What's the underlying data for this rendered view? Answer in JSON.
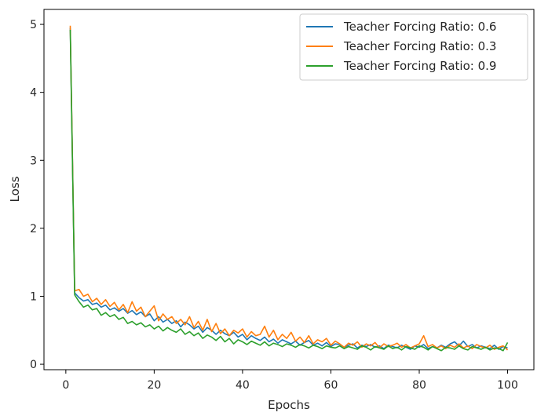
{
  "chart_data": {
    "type": "line",
    "xlabel": "Epochs",
    "ylabel": "Loss",
    "xlim": [
      -4.95,
      105.95
    ],
    "ylim": [
      -0.08,
      5.22
    ],
    "xticks": [
      0,
      20,
      40,
      60,
      80,
      100
    ],
    "yticks": [
      0,
      1,
      2,
      3,
      4,
      5
    ],
    "grid": false,
    "legend_position": "top-right",
    "series": [
      {
        "name": "Teacher Forcing Ratio: 0.6",
        "color": "#1f77b4",
        "x": [
          1,
          2,
          3,
          4,
          5,
          6,
          7,
          8,
          9,
          10,
          11,
          12,
          13,
          14,
          15,
          16,
          17,
          18,
          19,
          20,
          21,
          22,
          23,
          24,
          25,
          26,
          27,
          28,
          29,
          30,
          31,
          32,
          33,
          34,
          35,
          36,
          37,
          38,
          39,
          40,
          41,
          42,
          43,
          44,
          45,
          46,
          47,
          48,
          49,
          50,
          51,
          52,
          53,
          54,
          55,
          56,
          57,
          58,
          59,
          60,
          61,
          62,
          63,
          64,
          65,
          66,
          67,
          68,
          69,
          70,
          71,
          72,
          73,
          74,
          75,
          76,
          77,
          78,
          79,
          80,
          81,
          82,
          83,
          84,
          85,
          86,
          87,
          88,
          89,
          90,
          91,
          92,
          93,
          94,
          95,
          96,
          97,
          98,
          99,
          100
        ],
        "y": [
          4.95,
          1.05,
          0.98,
          0.93,
          0.95,
          0.88,
          0.9,
          0.84,
          0.87,
          0.8,
          0.83,
          0.78,
          0.82,
          0.75,
          0.79,
          0.73,
          0.77,
          0.7,
          0.74,
          0.64,
          0.7,
          0.62,
          0.66,
          0.6,
          0.64,
          0.55,
          0.62,
          0.58,
          0.52,
          0.56,
          0.47,
          0.54,
          0.5,
          0.44,
          0.5,
          0.45,
          0.42,
          0.47,
          0.4,
          0.44,
          0.36,
          0.42,
          0.38,
          0.35,
          0.4,
          0.33,
          0.37,
          0.31,
          0.36,
          0.33,
          0.3,
          0.34,
          0.28,
          0.32,
          0.35,
          0.28,
          0.31,
          0.27,
          0.32,
          0.26,
          0.3,
          0.29,
          0.25,
          0.28,
          0.3,
          0.24,
          0.28,
          0.26,
          0.29,
          0.25,
          0.27,
          0.23,
          0.28,
          0.26,
          0.24,
          0.28,
          0.25,
          0.22,
          0.27,
          0.25,
          0.29,
          0.23,
          0.26,
          0.24,
          0.28,
          0.25,
          0.3,
          0.33,
          0.27,
          0.34,
          0.26,
          0.29,
          0.24,
          0.27,
          0.25,
          0.23,
          0.28,
          0.22,
          0.26,
          0.24
        ]
      },
      {
        "name": "Teacher Forcing Ratio: 0.3",
        "color": "#ff7f0e",
        "x": [
          1,
          2,
          3,
          4,
          5,
          6,
          7,
          8,
          9,
          10,
          11,
          12,
          13,
          14,
          15,
          16,
          17,
          18,
          19,
          20,
          21,
          22,
          23,
          24,
          25,
          26,
          27,
          28,
          29,
          30,
          31,
          32,
          33,
          34,
          35,
          36,
          37,
          38,
          39,
          40,
          41,
          42,
          43,
          44,
          45,
          46,
          47,
          48,
          49,
          50,
          51,
          52,
          53,
          54,
          55,
          56,
          57,
          58,
          59,
          60,
          61,
          62,
          63,
          64,
          65,
          66,
          67,
          68,
          69,
          70,
          71,
          72,
          73,
          74,
          75,
          76,
          77,
          78,
          79,
          80,
          81,
          82,
          83,
          84,
          85,
          86,
          87,
          88,
          89,
          90,
          91,
          92,
          93,
          94,
          95,
          96,
          97,
          98,
          99,
          100
        ],
        "y": [
          4.98,
          1.08,
          1.1,
          1.0,
          1.03,
          0.92,
          0.97,
          0.88,
          0.95,
          0.85,
          0.91,
          0.8,
          0.88,
          0.76,
          0.92,
          0.78,
          0.84,
          0.7,
          0.78,
          0.86,
          0.64,
          0.74,
          0.66,
          0.7,
          0.6,
          0.66,
          0.58,
          0.7,
          0.54,
          0.63,
          0.5,
          0.66,
          0.48,
          0.6,
          0.45,
          0.52,
          0.42,
          0.5,
          0.46,
          0.52,
          0.4,
          0.48,
          0.42,
          0.44,
          0.56,
          0.4,
          0.5,
          0.36,
          0.44,
          0.38,
          0.47,
          0.34,
          0.4,
          0.32,
          0.42,
          0.3,
          0.36,
          0.33,
          0.38,
          0.28,
          0.34,
          0.3,
          0.25,
          0.31,
          0.28,
          0.33,
          0.25,
          0.3,
          0.27,
          0.32,
          0.24,
          0.3,
          0.26,
          0.28,
          0.31,
          0.25,
          0.29,
          0.24,
          0.27,
          0.3,
          0.42,
          0.26,
          0.29,
          0.24,
          0.27,
          0.23,
          0.28,
          0.25,
          0.3,
          0.24,
          0.27,
          0.23,
          0.29,
          0.26,
          0.24,
          0.28,
          0.22,
          0.25,
          0.27,
          0.21
        ]
      },
      {
        "name": "Teacher Forcing Ratio: 0.9",
        "color": "#2ca02c",
        "x": [
          1,
          2,
          3,
          4,
          5,
          6,
          7,
          8,
          9,
          10,
          11,
          12,
          13,
          14,
          15,
          16,
          17,
          18,
          19,
          20,
          21,
          22,
          23,
          24,
          25,
          26,
          27,
          28,
          29,
          30,
          31,
          32,
          33,
          34,
          35,
          36,
          37,
          38,
          39,
          40,
          41,
          42,
          43,
          44,
          45,
          46,
          47,
          48,
          49,
          50,
          51,
          52,
          53,
          54,
          55,
          56,
          57,
          58,
          59,
          60,
          61,
          62,
          63,
          64,
          65,
          66,
          67,
          68,
          69,
          70,
          71,
          72,
          73,
          74,
          75,
          76,
          77,
          78,
          79,
          80,
          81,
          82,
          83,
          84,
          85,
          86,
          87,
          88,
          89,
          90,
          91,
          92,
          93,
          94,
          95,
          96,
          97,
          98,
          99,
          100
        ],
        "y": [
          4.92,
          1.02,
          0.92,
          0.84,
          0.87,
          0.8,
          0.82,
          0.72,
          0.76,
          0.7,
          0.73,
          0.66,
          0.69,
          0.6,
          0.63,
          0.58,
          0.61,
          0.55,
          0.58,
          0.52,
          0.56,
          0.49,
          0.54,
          0.5,
          0.47,
          0.52,
          0.44,
          0.48,
          0.42,
          0.46,
          0.38,
          0.43,
          0.4,
          0.35,
          0.41,
          0.33,
          0.38,
          0.3,
          0.36,
          0.33,
          0.29,
          0.34,
          0.31,
          0.28,
          0.33,
          0.27,
          0.31,
          0.29,
          0.26,
          0.3,
          0.28,
          0.25,
          0.29,
          0.27,
          0.24,
          0.28,
          0.26,
          0.23,
          0.27,
          0.25,
          0.24,
          0.27,
          0.23,
          0.26,
          0.24,
          0.22,
          0.27,
          0.25,
          0.21,
          0.26,
          0.24,
          0.22,
          0.27,
          0.23,
          0.25,
          0.21,
          0.26,
          0.24,
          0.22,
          0.27,
          0.25,
          0.21,
          0.26,
          0.23,
          0.2,
          0.25,
          0.24,
          0.22,
          0.27,
          0.23,
          0.21,
          0.26,
          0.24,
          0.22,
          0.25,
          0.21,
          0.24,
          0.23,
          0.2,
          0.32
        ]
      }
    ]
  }
}
